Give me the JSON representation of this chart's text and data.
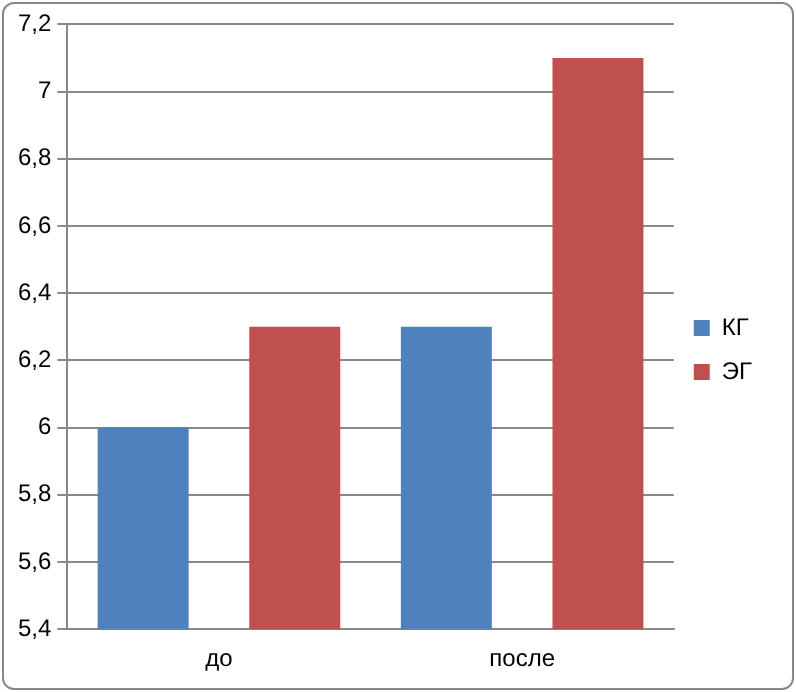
{
  "chart_data": {
    "type": "bar",
    "categories": [
      "до",
      "после"
    ],
    "series": [
      {
        "name": "КГ",
        "color": "#4f81bd",
        "values": [
          6.0,
          6.3
        ]
      },
      {
        "name": "ЭГ",
        "color": "#c0504d",
        "values": [
          6.3,
          7.1
        ]
      }
    ],
    "ylim": [
      5.4,
      7.2
    ],
    "yticks": [
      {
        "value": 5.4,
        "label": "5,4"
      },
      {
        "value": 5.6,
        "label": "5,6"
      },
      {
        "value": 5.8,
        "label": "5,8"
      },
      {
        "value": 6,
        "label": "6"
      },
      {
        "value": 6.2,
        "label": "6,2"
      },
      {
        "value": 6.4,
        "label": "6,4"
      },
      {
        "value": 6.6,
        "label": "6,6"
      },
      {
        "value": 6.8,
        "label": "6,8"
      },
      {
        "value": 7,
        "label": "7"
      },
      {
        "value": 7.2,
        "label": "7,2"
      }
    ],
    "grid": "y",
    "legend": "right"
  }
}
